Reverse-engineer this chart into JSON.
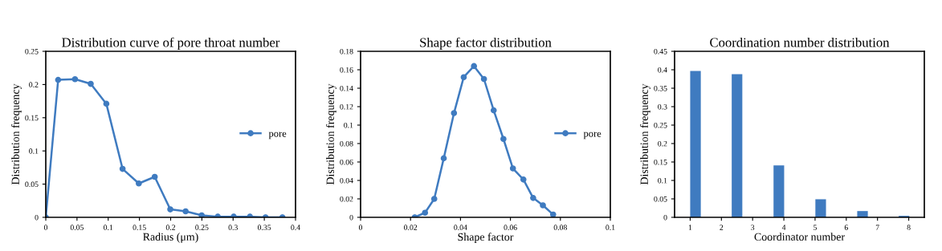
{
  "chart_data": [
    {
      "type": "line",
      "title": "Distribution curve of pore throat number",
      "xlabel": "Radius (μm)",
      "ylabel": "Distribution frequency",
      "x": [
        0,
        0.0198,
        0.0468,
        0.072,
        0.097,
        0.123,
        0.149,
        0.1745,
        0.1994,
        0.224,
        0.2497,
        0.2755,
        0.301,
        0.327,
        0.352,
        0.379
      ],
      "series": [
        {
          "name": "pore",
          "color": "#3f7bc0",
          "values": [
            0,
            0.207,
            0.208,
            0.201,
            0.171,
            0.073,
            0.051,
            0.061,
            0.012,
            0.009,
            0.003,
            0.001,
            0.001,
            0.001,
            0,
            0
          ]
        }
      ],
      "xlim": [
        0,
        0.4
      ],
      "xticks": [
        0,
        0.05,
        0.1,
        0.15,
        0.2,
        0.25,
        0.3,
        0.35,
        0.4
      ],
      "ylim": [
        0,
        0.25
      ],
      "yticks": [
        0,
        0.05,
        0.1,
        0.15,
        0.2,
        0.25
      ],
      "marker": "circle",
      "line_style": "solid",
      "legend": "right",
      "grid": false
    },
    {
      "type": "line",
      "title": "Shape factor distribution",
      "xlabel": "Shape factor",
      "ylabel": "Distribution frequency",
      "x": [
        0.0217,
        0.0258,
        0.0295,
        0.0333,
        0.0374,
        0.0413,
        0.0454,
        0.0494,
        0.0533,
        0.0572,
        0.061,
        0.0652,
        0.0691,
        0.073,
        0.0771
      ],
      "series": [
        {
          "name": "pore",
          "color": "#3f7bc0",
          "values": [
            0,
            0.005,
            0.02,
            0.064,
            0.113,
            0.152,
            0.164,
            0.15,
            0.116,
            0.085,
            0.053,
            0.041,
            0.021,
            0.013,
            0.003
          ]
        }
      ],
      "xlim": [
        0,
        0.1
      ],
      "xticks": [
        0,
        0.02,
        0.04,
        0.06,
        0.08,
        0.1
      ],
      "ylim": [
        0,
        0.18
      ],
      "yticks": [
        0,
        0.02,
        0.04,
        0.06,
        0.08,
        0.1,
        0.12,
        0.14,
        0.16,
        0.18
      ],
      "marker": "circle",
      "line_style": "solid",
      "legend": "right",
      "grid": false
    },
    {
      "type": "bar",
      "title": "Coordination number distribution",
      "xlabel": "Coordinator number",
      "ylabel": "Distribution frequency",
      "x": [
        1.17,
        2.5,
        3.84,
        5.18,
        6.52,
        7.85
      ],
      "series": [
        {
          "color": "#3f7bc0",
          "values": [
            0.397,
            0.388,
            0.141,
            0.049,
            0.017,
            0.004
          ]
        }
      ],
      "xlim": [
        0.5,
        8.5
      ],
      "xticks": [
        1,
        2,
        3,
        4,
        5,
        6,
        7,
        8
      ],
      "ylim": [
        0,
        0.45
      ],
      "yticks": [
        0,
        0.05,
        0.1,
        0.15,
        0.2,
        0.25,
        0.3,
        0.35,
        0.4,
        0.45
      ],
      "legend": false,
      "grid": false
    }
  ]
}
